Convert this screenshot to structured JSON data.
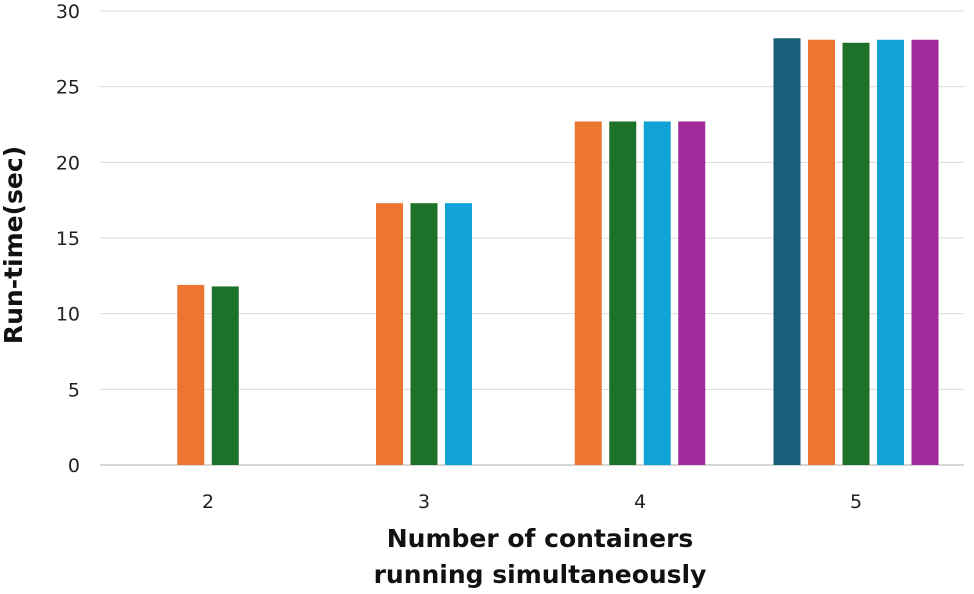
{
  "chart_data": {
    "type": "bar",
    "title": "",
    "xlabel_lines": [
      "Number of containers",
      "running simultaneously"
    ],
    "ylabel": "Run-time(sec)",
    "ylim": [
      0,
      30
    ],
    "yticks": [
      "0",
      "5",
      "10",
      "15",
      "20",
      "25",
      "30"
    ],
    "grid": true,
    "legend": "none",
    "categories": [
      "2",
      "3",
      "4",
      "5"
    ],
    "series": [
      {
        "color": "#1a5f7a",
        "values": [
          null,
          null,
          null,
          28.2
        ]
      },
      {
        "color": "#ed7532",
        "values": [
          11.9,
          17.3,
          22.7,
          28.1
        ]
      },
      {
        "color": "#1d7128",
        "values": [
          11.8,
          17.3,
          22.7,
          27.9
        ]
      },
      {
        "color": "#11a2d8",
        "values": [
          null,
          17.3,
          22.7,
          28.1
        ]
      },
      {
        "color": "#a1299a",
        "values": [
          null,
          null,
          22.7,
          28.1
        ]
      }
    ]
  }
}
